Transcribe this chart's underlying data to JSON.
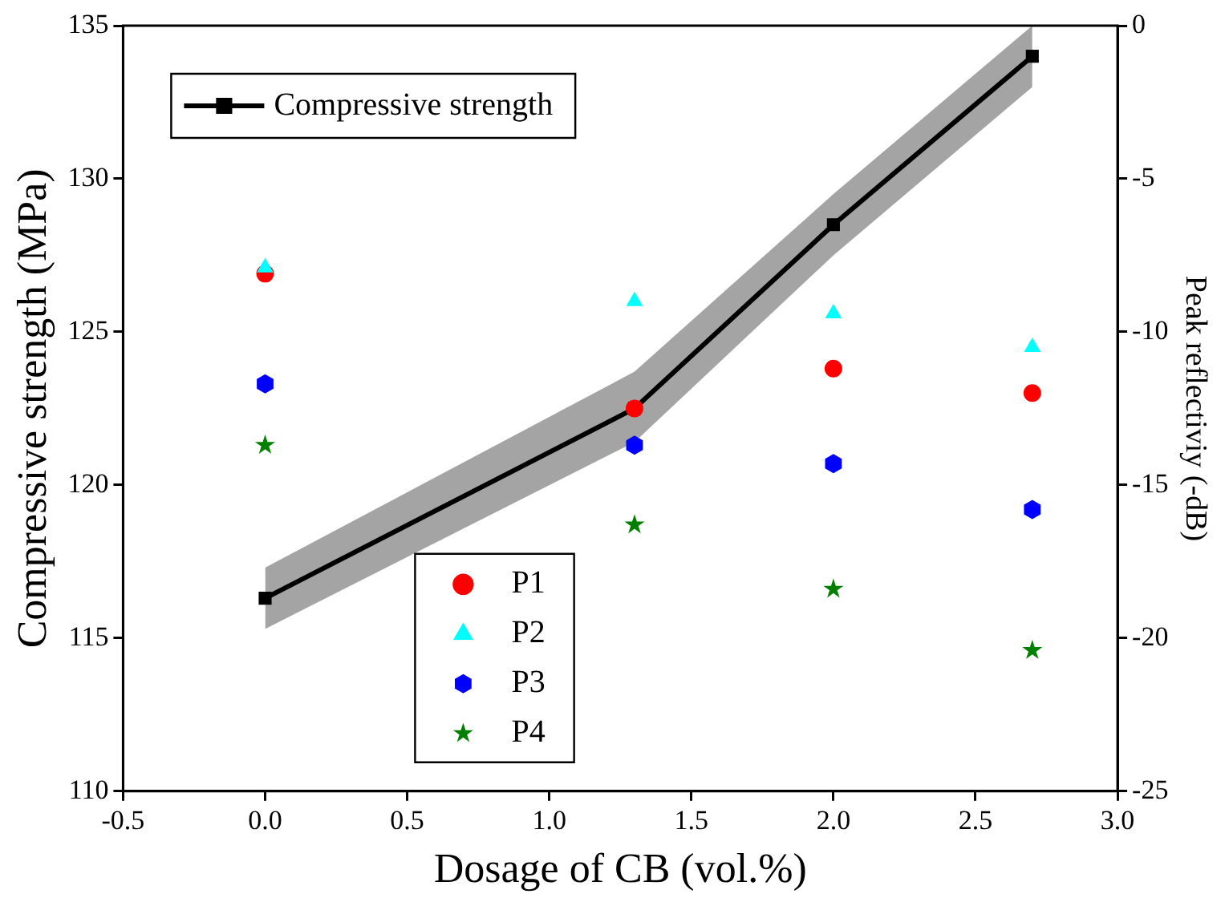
{
  "chart_data": {
    "type": "line",
    "xlabel": "Dosage of CB (vol.%)",
    "ylabel": "Compressive strength (MPa)",
    "y2label": "Peak reflectiviy (-dB)",
    "xlim": [
      -0.5,
      3.0
    ],
    "xticks": [
      {
        "value": -0.5,
        "label": "-0.5"
      },
      {
        "value": 0,
        "label": "0.0"
      },
      {
        "value": 0.5,
        "label": "0.5"
      },
      {
        "value": 1,
        "label": "1.0"
      },
      {
        "value": 1.5,
        "label": "1.5"
      },
      {
        "value": 2,
        "label": "2.0"
      },
      {
        "value": 2.5,
        "label": "2.5"
      },
      {
        "value": 3,
        "label": "3.0"
      }
    ],
    "ylim": [
      110,
      135
    ],
    "yticks": [
      110,
      115,
      120,
      125,
      130,
      135
    ],
    "y2lim": [
      -25,
      0
    ],
    "y2ticks": [
      -25,
      -20,
      -15,
      -10,
      -5,
      0
    ],
    "x": [
      0,
      1.3,
      2.0,
      2.7
    ],
    "grid": false,
    "legend": "left",
    "series": [
      {
        "name": "Compressive strength",
        "color": "#000000",
        "marker": "square",
        "values": [
          116.3,
          122.5,
          128.5,
          134.0
        ],
        "lower": [
          115.3,
          121.4,
          127.5,
          133.0
        ],
        "upper": [
          117.3,
          123.7,
          129.5,
          135.0
        ]
      },
      {
        "name": "P1",
        "type": "scatter",
        "axis": "y2",
        "color": "#ff0000",
        "marker": "circle",
        "values": [
          -8.1,
          -12.5,
          -11.2,
          -12.0
        ]
      },
      {
        "name": "P2",
        "type": "scatter",
        "axis": "y2",
        "color": "#00ffff",
        "marker": "triangle",
        "values": [
          -7.9,
          -9.0,
          -9.4,
          -10.5
        ]
      },
      {
        "name": "P3",
        "type": "scatter",
        "axis": "y2",
        "color": "#0000ff",
        "values": [
          -11.7,
          -13.7,
          -14.3,
          -15.8
        ]
      },
      {
        "name": "P4",
        "type": "scatter",
        "axis": "y2",
        "color": "#008000",
        "marker": "star",
        "values": [
          -13.7,
          -16.3,
          -18.4,
          -20.4
        ]
      }
    ]
  }
}
